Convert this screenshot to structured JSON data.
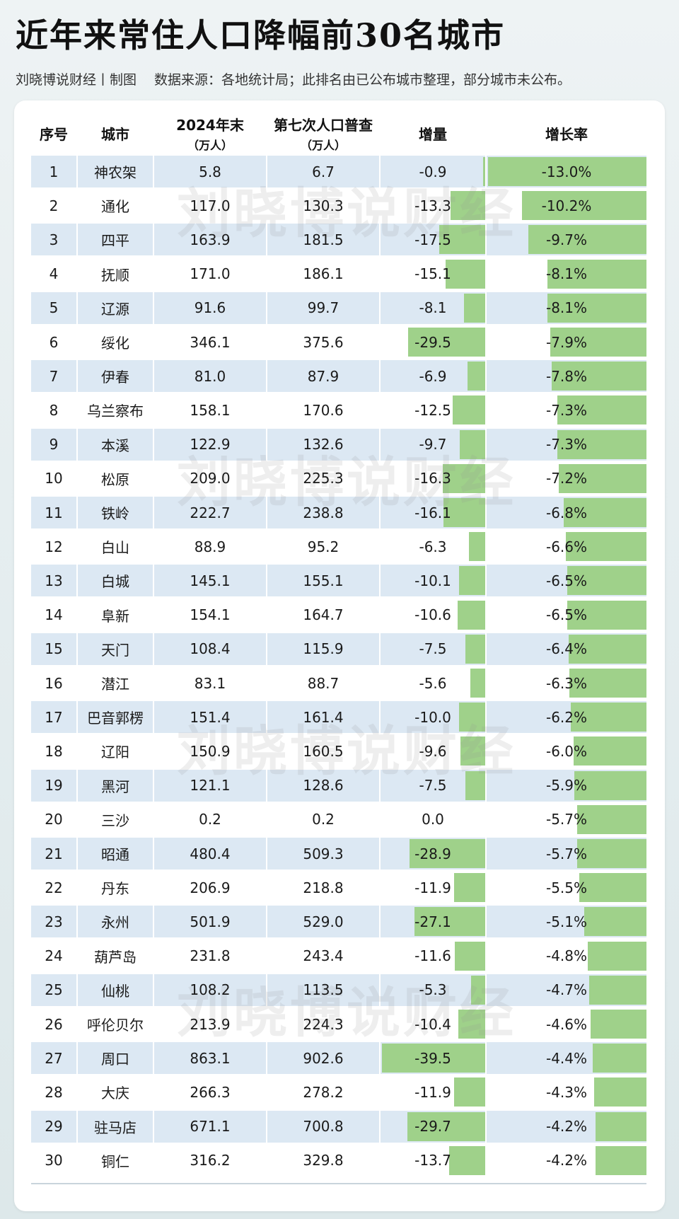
{
  "title": "近年来常住人口降幅前30名城市",
  "subtitle": "刘晓博说财经丨制图　 数据来源：各地统计局；此排名由已公布城市整理，部分城市未公布。",
  "watermark": "刘晓博说财经",
  "colors": {
    "bar": "#9fd18a",
    "row_band": "#dce8f3",
    "background": "#e6eef0"
  },
  "chart_data": {
    "type": "table",
    "columns": [
      {
        "label": "序号",
        "sub": ""
      },
      {
        "label": "城市",
        "sub": ""
      },
      {
        "label": "2024年末",
        "sub": "（万人）"
      },
      {
        "label": "第七次人口普查",
        "sub": "（万人）"
      },
      {
        "label": "增量",
        "sub": ""
      },
      {
        "label": "增长率",
        "sub": ""
      }
    ],
    "rows": [
      {
        "rank": "1",
        "city": "神农架",
        "pop2024": "5.8",
        "census7": "6.7",
        "change": "-0.9",
        "change_value": -0.9,
        "rate": "-13.0%",
        "rate_value": -13.0
      },
      {
        "rank": "2",
        "city": "通化",
        "pop2024": "117.0",
        "census7": "130.3",
        "change": "-13.3",
        "change_value": -13.3,
        "rate": "-10.2%",
        "rate_value": -10.2
      },
      {
        "rank": "3",
        "city": "四平",
        "pop2024": "163.9",
        "census7": "181.5",
        "change": "-17.5",
        "change_value": -17.5,
        "rate": "-9.7%",
        "rate_value": -9.7
      },
      {
        "rank": "4",
        "city": "抚顺",
        "pop2024": "171.0",
        "census7": "186.1",
        "change": "-15.1",
        "change_value": -15.1,
        "rate": "-8.1%",
        "rate_value": -8.1
      },
      {
        "rank": "5",
        "city": "辽源",
        "pop2024": "91.6",
        "census7": "99.7",
        "change": "-8.1",
        "change_value": -8.1,
        "rate": "-8.1%",
        "rate_value": -8.1
      },
      {
        "rank": "6",
        "city": "绥化",
        "pop2024": "346.1",
        "census7": "375.6",
        "change": "-29.5",
        "change_value": -29.5,
        "rate": "-7.9%",
        "rate_value": -7.9
      },
      {
        "rank": "7",
        "city": "伊春",
        "pop2024": "81.0",
        "census7": "87.9",
        "change": "-6.9",
        "change_value": -6.9,
        "rate": "-7.8%",
        "rate_value": -7.8
      },
      {
        "rank": "8",
        "city": "乌兰察布",
        "pop2024": "158.1",
        "census7": "170.6",
        "change": "-12.5",
        "change_value": -12.5,
        "rate": "-7.3%",
        "rate_value": -7.3
      },
      {
        "rank": "9",
        "city": "本溪",
        "pop2024": "122.9",
        "census7": "132.6",
        "change": "-9.7",
        "change_value": -9.7,
        "rate": "-7.3%",
        "rate_value": -7.3
      },
      {
        "rank": "10",
        "city": "松原",
        "pop2024": "209.0",
        "census7": "225.3",
        "change": "-16.3",
        "change_value": -16.3,
        "rate": "-7.2%",
        "rate_value": -7.2
      },
      {
        "rank": "11",
        "city": "铁岭",
        "pop2024": "222.7",
        "census7": "238.8",
        "change": "-16.1",
        "change_value": -16.1,
        "rate": "-6.8%",
        "rate_value": -6.8
      },
      {
        "rank": "12",
        "city": "白山",
        "pop2024": "88.9",
        "census7": "95.2",
        "change": "-6.3",
        "change_value": -6.3,
        "rate": "-6.6%",
        "rate_value": -6.6
      },
      {
        "rank": "13",
        "city": "白城",
        "pop2024": "145.1",
        "census7": "155.1",
        "change": "-10.1",
        "change_value": -10.1,
        "rate": "-6.5%",
        "rate_value": -6.5
      },
      {
        "rank": "14",
        "city": "阜新",
        "pop2024": "154.1",
        "census7": "164.7",
        "change": "-10.6",
        "change_value": -10.6,
        "rate": "-6.5%",
        "rate_value": -6.5
      },
      {
        "rank": "15",
        "city": "天门",
        "pop2024": "108.4",
        "census7": "115.9",
        "change": "-7.5",
        "change_value": -7.5,
        "rate": "-6.4%",
        "rate_value": -6.4
      },
      {
        "rank": "16",
        "city": "潜江",
        "pop2024": "83.1",
        "census7": "88.7",
        "change": "-5.6",
        "change_value": -5.6,
        "rate": "-6.3%",
        "rate_value": -6.3
      },
      {
        "rank": "17",
        "city": "巴音郭楞",
        "pop2024": "151.4",
        "census7": "161.4",
        "change": "-10.0",
        "change_value": -10.0,
        "rate": "-6.2%",
        "rate_value": -6.2
      },
      {
        "rank": "18",
        "city": "辽阳",
        "pop2024": "150.9",
        "census7": "160.5",
        "change": "-9.6",
        "change_value": -9.6,
        "rate": "-6.0%",
        "rate_value": -6.0
      },
      {
        "rank": "19",
        "city": "黑河",
        "pop2024": "121.1",
        "census7": "128.6",
        "change": "-7.5",
        "change_value": -7.5,
        "rate": "-5.9%",
        "rate_value": -5.9
      },
      {
        "rank": "20",
        "city": "三沙",
        "pop2024": "0.2",
        "census7": "0.2",
        "change": "0.0",
        "change_value": 0.0,
        "rate": "-5.7%",
        "rate_value": -5.7
      },
      {
        "rank": "21",
        "city": "昭通",
        "pop2024": "480.4",
        "census7": "509.3",
        "change": "-28.9",
        "change_value": -28.9,
        "rate": "-5.7%",
        "rate_value": -5.7
      },
      {
        "rank": "22",
        "city": "丹东",
        "pop2024": "206.9",
        "census7": "218.8",
        "change": "-11.9",
        "change_value": -11.9,
        "rate": "-5.5%",
        "rate_value": -5.5
      },
      {
        "rank": "23",
        "city": "永州",
        "pop2024": "501.9",
        "census7": "529.0",
        "change": "-27.1",
        "change_value": -27.1,
        "rate": "-5.1%",
        "rate_value": -5.1
      },
      {
        "rank": "24",
        "city": "葫芦岛",
        "pop2024": "231.8",
        "census7": "243.4",
        "change": "-11.6",
        "change_value": -11.6,
        "rate": "-4.8%",
        "rate_value": -4.8
      },
      {
        "rank": "25",
        "city": "仙桃",
        "pop2024": "108.2",
        "census7": "113.5",
        "change": "-5.3",
        "change_value": -5.3,
        "rate": "-4.7%",
        "rate_value": -4.7
      },
      {
        "rank": "26",
        "city": "呼伦贝尔",
        "pop2024": "213.9",
        "census7": "224.3",
        "change": "-10.4",
        "change_value": -10.4,
        "rate": "-4.6%",
        "rate_value": -4.6
      },
      {
        "rank": "27",
        "city": "周口",
        "pop2024": "863.1",
        "census7": "902.6",
        "change": "-39.5",
        "change_value": -39.5,
        "rate": "-4.4%",
        "rate_value": -4.4
      },
      {
        "rank": "28",
        "city": "大庆",
        "pop2024": "266.3",
        "census7": "278.2",
        "change": "-11.9",
        "change_value": -11.9,
        "rate": "-4.3%",
        "rate_value": -4.3
      },
      {
        "rank": "29",
        "city": "驻马店",
        "pop2024": "671.1",
        "census7": "700.8",
        "change": "-29.7",
        "change_value": -29.7,
        "rate": "-4.2%",
        "rate_value": -4.2
      },
      {
        "rank": "30",
        "city": "铜仁",
        "pop2024": "316.2",
        "census7": "329.8",
        "change": "-13.7",
        "change_value": -13.7,
        "rate": "-4.2%",
        "rate_value": -4.2
      }
    ]
  }
}
